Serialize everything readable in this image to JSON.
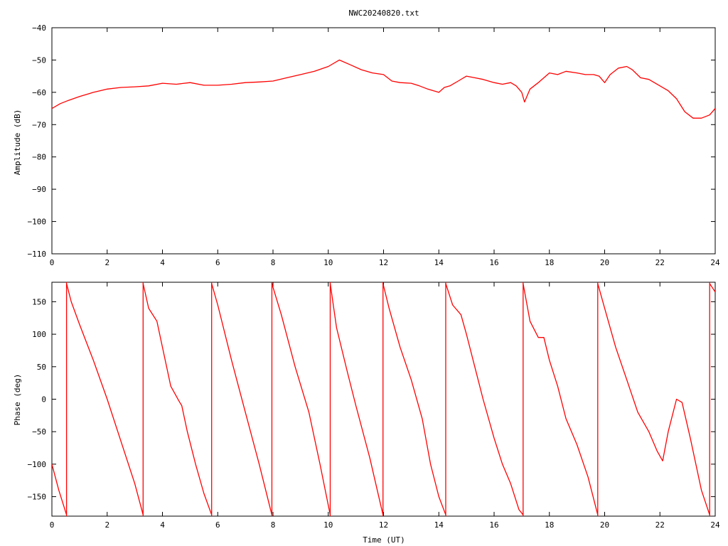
{
  "chart_data": [
    {
      "type": "line",
      "title": "NWC20240820.txt",
      "xlabel": "",
      "ylabel": "Amplitude (dB)",
      "xlim": [
        0,
        24
      ],
      "ylim": [
        -110,
        -40
      ],
      "xticks": [
        0,
        2,
        4,
        6,
        8,
        10,
        12,
        14,
        16,
        18,
        20,
        22,
        24
      ],
      "yticks": [
        -110,
        -100,
        -90,
        -80,
        -70,
        -60,
        -50,
        -40
      ],
      "ytick_labels": [
        "−110",
        "−100",
        "−90",
        "−80",
        "−70",
        "−60",
        "−50",
        "−40"
      ],
      "color": "#ff0000",
      "series": [
        {
          "x": [
            0,
            0.3,
            0.6,
            1.0,
            1.5,
            2.0,
            2.5,
            3.0,
            3.5,
            4.0,
            4.5,
            5.0,
            5.5,
            6.0,
            6.5,
            7.0,
            7.5,
            8.0,
            8.5,
            9.0,
            9.5,
            10.0,
            10.4,
            10.8,
            11.2,
            11.6,
            12.0,
            12.3,
            12.6,
            13.0,
            13.3,
            13.6,
            14.0,
            14.2,
            14.4,
            14.7,
            15.0,
            15.3,
            15.6,
            16.0,
            16.3,
            16.6,
            16.8,
            17.0,
            17.1,
            17.3,
            17.6,
            18.0,
            18.3,
            18.6,
            19.0,
            19.3,
            19.6,
            19.8,
            20.0,
            20.2,
            20.5,
            20.8,
            21.0,
            21.3,
            21.6,
            22.0,
            22.3,
            22.6,
            22.9,
            23.2,
            23.5,
            23.8,
            24.0
          ],
          "y": [
            -65,
            -63.5,
            -62.5,
            -61.3,
            -60,
            -59,
            -58.5,
            -58.3,
            -58,
            -57.2,
            -57.5,
            -57,
            -57.8,
            -57.8,
            -57.5,
            -57,
            -56.8,
            -56.5,
            -55.5,
            -54.5,
            -53.5,
            -52,
            -50,
            -51.5,
            -53,
            -54,
            -54.5,
            -56.5,
            -57,
            -57.2,
            -58,
            -59,
            -60,
            -58.5,
            -58,
            -56.5,
            -55,
            -55.5,
            -56,
            -57,
            -57.5,
            -57,
            -58,
            -60,
            -63,
            -59,
            -57,
            -54,
            -54.5,
            -53.5,
            -54,
            -54.5,
            -54.5,
            -55,
            -57,
            -54.5,
            -52.5,
            -52,
            -53,
            -55.5,
            -56,
            -58,
            -59.5,
            -62,
            -66,
            -68,
            -68,
            -67,
            -65
          ]
        }
      ]
    },
    {
      "type": "line",
      "title": "",
      "xlabel": "Time (UT)",
      "ylabel": "Phase (deg)",
      "xlim": [
        0,
        24
      ],
      "ylim": [
        -180,
        180
      ],
      "xticks": [
        0,
        2,
        4,
        6,
        8,
        10,
        12,
        14,
        16,
        18,
        20,
        22,
        24
      ],
      "yticks": [
        -150,
        -100,
        -50,
        0,
        50,
        100,
        150
      ],
      "ytick_labels": [
        "−150",
        "−100",
        "−50",
        "0",
        "50",
        "100",
        "150"
      ],
      "color": "#ff0000",
      "phase_wraps_at": [
        0.53,
        3.3,
        5.78,
        7.96,
        10.07,
        11.98,
        14.25,
        17.05,
        19.75,
        23.8
      ],
      "series": [
        {
          "x": [
            0,
            0.25,
            0.53
          ],
          "y": [
            -100,
            -140,
            -178
          ]
        },
        {
          "x": [
            0.53,
            0.7,
            1.0,
            1.5,
            2.0,
            2.5,
            3.0,
            3.3
          ],
          "y": [
            178,
            150,
            115,
            60,
            0,
            -65,
            -130,
            -178
          ]
        },
        {
          "x": [
            3.3,
            3.5,
            3.8,
            4.0,
            4.3,
            4.6,
            4.7,
            4.9,
            5.2,
            5.5,
            5.78
          ],
          "y": [
            178,
            140,
            120,
            80,
            20,
            -3,
            -10,
            -50,
            -100,
            -145,
            -178
          ]
        },
        {
          "x": [
            5.78,
            6.0,
            6.5,
            7.0,
            7.5,
            7.96
          ],
          "y": [
            178,
            145,
            60,
            -20,
            -100,
            -178
          ]
        },
        {
          "x": [
            7.96,
            8.3,
            8.8,
            9.3,
            9.7,
            10.07
          ],
          "y": [
            178,
            130,
            50,
            -20,
            -100,
            -178
          ]
        },
        {
          "x": [
            10.07,
            10.3,
            10.7,
            11.0,
            11.5,
            11.98
          ],
          "y": [
            178,
            110,
            40,
            -10,
            -90,
            -178
          ]
        },
        {
          "x": [
            11.98,
            12.2,
            12.6,
            13.0,
            13.4,
            13.7,
            14.0,
            14.25
          ],
          "y": [
            178,
            140,
            80,
            30,
            -30,
            -100,
            -150,
            -178
          ]
        },
        {
          "x": [
            14.25,
            14.5,
            14.8,
            15.0,
            15.3,
            15.6,
            16.0,
            16.3,
            16.6,
            16.9,
            17.05
          ],
          "y": [
            178,
            145,
            130,
            100,
            50,
            0,
            -60,
            -100,
            -130,
            -170,
            -178
          ]
        },
        {
          "x": [
            17.05,
            17.3,
            17.6,
            17.8,
            18.0,
            18.3,
            18.6,
            19.0,
            19.4,
            19.75
          ],
          "y": [
            178,
            120,
            95,
            95,
            60,
            20,
            -30,
            -70,
            -120,
            -178
          ]
        },
        {
          "x": [
            19.75,
            20.0,
            20.4,
            20.8,
            21.2,
            21.6,
            21.9,
            22.1,
            22.3,
            22.6,
            22.8,
            23.1,
            23.5,
            23.8
          ],
          "y": [
            178,
            140,
            80,
            30,
            -20,
            -50,
            -80,
            -95,
            -50,
            0,
            -5,
            -60,
            -140,
            -178
          ]
        },
        {
          "x": [
            23.8,
            24.0
          ],
          "y": [
            178,
            165
          ]
        }
      ]
    }
  ]
}
